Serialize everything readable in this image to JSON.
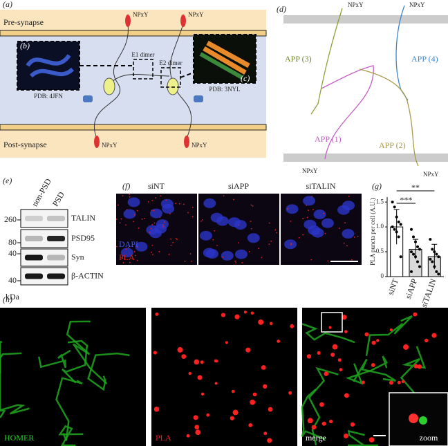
{
  "panel_a": {
    "label": "(a)",
    "pre": "Pre-synapse",
    "post": "Post-synapse",
    "npxy": [
      "NPxY",
      "NPxY",
      "NPxY",
      "NPxY"
    ],
    "inset_b": {
      "label": "(b)",
      "pdb": "PDB: 4JFN"
    },
    "inset_c": {
      "label": "(c)",
      "pdb": "PDB: 3NYL"
    },
    "e1": "E1 dimer",
    "e2": "E2 dimer"
  },
  "panel_d": {
    "label": "(d)",
    "npxy": [
      "NPxY",
      "NPxY",
      "NPxY",
      "NPxY"
    ],
    "app": [
      "APP (3)",
      "APP (4)",
      "APP (1)",
      "APP (2)"
    ]
  },
  "panel_e": {
    "label": "(e)",
    "lanes": [
      "non-PSD",
      "PSD"
    ],
    "markers": [
      "260",
      "80",
      "40",
      "40"
    ],
    "unit": "kDa",
    "bands": [
      "TALIN",
      "PSD95",
      "Syn",
      "β-ACTIN"
    ]
  },
  "panel_f": {
    "label": "(f)",
    "conditions": [
      "siNT",
      "siAPP",
      "siTALIN"
    ],
    "channels": [
      "DAPI",
      "PLA"
    ]
  },
  "panel_g": {
    "label": "(g)",
    "type": "bar",
    "y_label": "PLA puncta per cell (A.U.)",
    "categories": [
      "siNT",
      "siAPP",
      "siTALIN"
    ],
    "values": [
      1.0,
      0.55,
      0.4
    ],
    "errors": [
      0.35,
      0.2,
      0.25
    ],
    "points": [
      [
        1.5,
        1.4,
        1.2,
        1.1,
        1.05,
        1.0,
        0.95,
        0.9,
        0.8,
        0.4
      ],
      [
        0.95,
        0.8,
        0.7,
        0.6,
        0.55,
        0.5,
        0.45,
        0.4,
        0.3,
        0.2,
        0.1
      ],
      [
        0.75,
        0.55,
        0.5,
        0.45,
        0.4,
        0.35,
        0.3,
        0.2,
        0.1,
        0.05
      ]
    ],
    "ylim": [
      0,
      1.6
    ],
    "yticks": [
      0,
      0.5,
      {
        "value": 1,
        "label": "1.0"
      },
      1.5
    ],
    "significance": [
      "***",
      "**"
    ]
  },
  "panel_h": {
    "label": "(h)",
    "channels": [
      "HOMER",
      "PLA",
      "merge",
      "zoom"
    ]
  }
}
